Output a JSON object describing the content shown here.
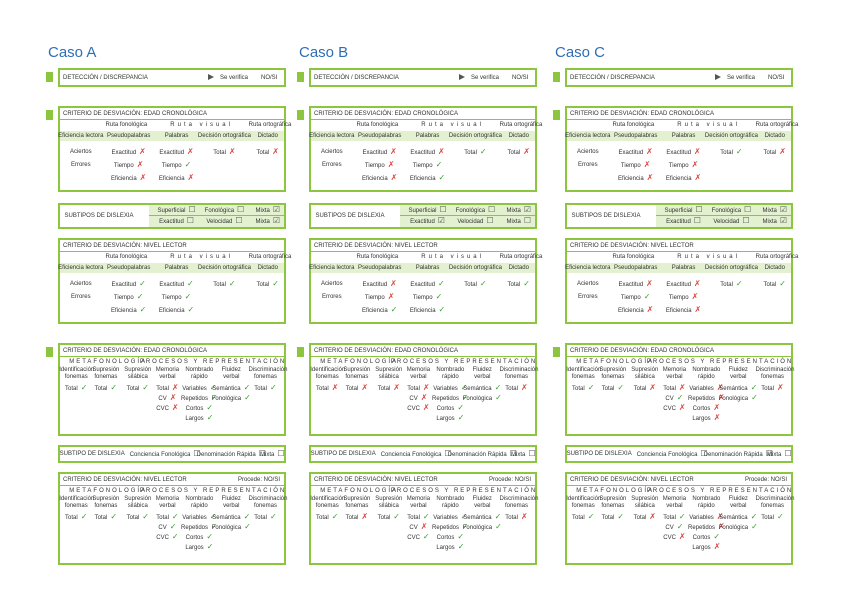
{
  "labels": {
    "detection": "DETECCIÓN / DISCREPANCIA",
    "verify": "Se verifica",
    "noSi": "NO/SI",
    "edad": "CRITERIO DE DESVIACIÓN: EDAD CRONOLÓGICA",
    "nivel": "CRITERIO DE DESVIACIÓN: NIVEL LECTOR",
    "readingGroups": [
      "Ruta fonológica",
      "Ruta visual",
      "Ruta ortográfica"
    ],
    "readingColumns": [
      "Eficiencia lectora",
      "Pseudopalabras",
      "Palabras",
      "Decisión ortográfica",
      "Dictado"
    ],
    "subtypesTitle": "SUBTIPOS DE DISLEXIA",
    "metaGroups": [
      "METAFONOLOGÍA",
      "PROCESOS Y REPRESENTACIÓN"
    ],
    "metaColumns": [
      "Identificación fonemas",
      "Supresión fonemas",
      "Supresión silábica",
      "Memoria verbal",
      "Nombrado rápido",
      "Fluidez verbal",
      "Discriminación fonemas"
    ],
    "subtypeTitle": "SUBTIPO DE DISLEXIA",
    "procede": "Procede: NO/SI"
  },
  "markColors": {
    "✓": "#3d9b35",
    "✗": "#d8433b"
  },
  "cases": [
    {
      "title": "Caso A",
      "reading1": [
        {
          "label": "Aciertos",
          "cells": [
            [
              "Exactitud",
              "✗"
            ],
            [
              "Exactitud",
              "✗"
            ],
            [
              "Total",
              "✗"
            ],
            [
              "Total",
              "✗"
            ]
          ]
        },
        {
          "label": "Errores",
          "cells": [
            [
              "Tiempo",
              "✗"
            ],
            [
              "Tiempo",
              "✓"
            ]
          ]
        },
        {
          "cells": [
            [
              "Eficiencia",
              "✗"
            ],
            [
              "Eficiencia",
              "✗"
            ]
          ]
        }
      ],
      "subtypes": [
        [
          [
            "Superficial",
            "☐"
          ],
          [
            "Fonológica",
            "☐"
          ],
          [
            "Mixta",
            "☑"
          ]
        ],
        [
          [
            "Exactitud",
            "☐"
          ],
          [
            "Velocidad",
            "☐"
          ],
          [
            "Mixta",
            "☑"
          ]
        ]
      ],
      "reading2": [
        {
          "label": "Aciertos",
          "cells": [
            [
              "Exactitud",
              "✓"
            ],
            [
              "Exactitud",
              "✓"
            ],
            [
              "Total",
              "✓"
            ],
            [
              "Total",
              "✓"
            ]
          ]
        },
        {
          "label": "Errores",
          "cells": [
            [
              "Tiempo",
              "✓"
            ],
            [
              "Tiempo",
              "✓"
            ]
          ]
        },
        {
          "cells": [
            [
              "Eficiencia",
              "✓"
            ],
            [
              "Eficiencia",
              "✓"
            ]
          ]
        }
      ],
      "meta1": [
        [
          [
            "Total",
            "✓"
          ],
          [
            "Total",
            "✓"
          ],
          [
            "Total",
            "✓"
          ],
          [
            "Total",
            "✗"
          ],
          [
            "Variables",
            "✓"
          ],
          [
            "Semántica",
            "✓"
          ],
          [
            "Total",
            "✓"
          ]
        ],
        [
          [
            "CV",
            "✗"
          ],
          [
            "Repetidos",
            "✓"
          ],
          [
            "Fonológica",
            "✓"
          ]
        ],
        [
          [
            "CVC",
            "✗"
          ],
          [
            "Cortos",
            "✓"
          ]
        ],
        [
          [
            "Largos",
            "✓"
          ]
        ]
      ],
      "subtype": [
        [
          "Conciencia Fonológica",
          "☐"
        ],
        [
          "Denominación Rápida",
          "☐"
        ],
        [
          "Mixta",
          "☐"
        ]
      ],
      "meta2": [
        [
          [
            "Total",
            "✓"
          ],
          [
            "Total",
            "✓"
          ],
          [
            "Total",
            "✓"
          ],
          [
            "Total",
            "✓"
          ],
          [
            "Variables",
            "✓"
          ],
          [
            "Semántica",
            "✓"
          ],
          [
            "Total",
            "✓"
          ]
        ],
        [
          [
            "CV",
            "✓"
          ],
          [
            "Repetidos",
            "✓"
          ],
          [
            "Fonológica",
            "✓"
          ]
        ],
        [
          [
            "CVC",
            "✓"
          ],
          [
            "Cortos",
            "✓"
          ]
        ],
        [
          [
            "Largos",
            "✓"
          ]
        ]
      ]
    },
    {
      "title": "Caso B",
      "reading1": [
        {
          "label": "Aciertos",
          "cells": [
            [
              "Exactitud",
              "✗"
            ],
            [
              "Exactitud",
              "✗"
            ],
            [
              "Total",
              "✓"
            ],
            [
              "Total",
              "✗"
            ]
          ]
        },
        {
          "label": "Errores",
          "cells": [
            [
              "Tiempo",
              "✗"
            ],
            [
              "Tiempo",
              "✓"
            ]
          ]
        },
        {
          "cells": [
            [
              "Eficiencia",
              "✗"
            ],
            [
              "Eficiencia",
              "✓"
            ]
          ]
        }
      ],
      "subtypes": [
        [
          [
            "Superficial",
            "☐"
          ],
          [
            "Fonológica",
            "☐"
          ],
          [
            "Mixta",
            "☑"
          ]
        ],
        [
          [
            "Exactitud",
            "☑"
          ],
          [
            "Velocidad",
            "☐"
          ],
          [
            "Mixta",
            "☐"
          ]
        ]
      ],
      "reading2": [
        {
          "label": "Aciertos",
          "cells": [
            [
              "Exactitud",
              "✗"
            ],
            [
              "Exactitud",
              "✓"
            ],
            [
              "Total",
              "✓"
            ],
            [
              "Total",
              "✓"
            ]
          ]
        },
        {
          "label": "Errores",
          "cells": [
            [
              "Tiempo",
              "✗"
            ],
            [
              "Tiempo",
              "✓"
            ]
          ]
        },
        {
          "cells": [
            [
              "Eficiencia",
              "✓"
            ],
            [
              "Eficiencia",
              "✓"
            ]
          ]
        }
      ],
      "meta1": [
        [
          [
            "Total",
            "✗"
          ],
          [
            "Total",
            "✗"
          ],
          [
            "Total",
            "✗"
          ],
          [
            "Total",
            "✗"
          ],
          [
            "Variables",
            "✓"
          ],
          [
            "Semántica",
            "✓"
          ],
          [
            "Total",
            "✗"
          ]
        ],
        [
          [
            "CV",
            "✗"
          ],
          [
            "Repetidos",
            "✓"
          ],
          [
            "Fonológica",
            "✓"
          ]
        ],
        [
          [
            "CVC",
            "✗"
          ],
          [
            "Cortos",
            "✓"
          ]
        ],
        [
          [
            "Largos",
            "✓"
          ]
        ]
      ],
      "subtype": [
        [
          "Conciencia Fonológica",
          "☐"
        ],
        [
          "Denominación Rápida",
          "☐"
        ],
        [
          "Mixta",
          "☐"
        ]
      ],
      "meta2": [
        [
          [
            "Total",
            "✓"
          ],
          [
            "Total",
            "✗"
          ],
          [
            "Total",
            "✓"
          ],
          [
            "Total",
            "✓"
          ],
          [
            "Variables",
            "✓"
          ],
          [
            "Semántica",
            "✓"
          ],
          [
            "Total",
            "✗"
          ]
        ],
        [
          [
            "CV",
            "✗"
          ],
          [
            "Repetidos",
            "✓"
          ],
          [
            "Fonológica",
            "✓"
          ]
        ],
        [
          [
            "CVC",
            "✓"
          ],
          [
            "Cortos",
            "✓"
          ]
        ],
        [
          [
            "Largos",
            "✓"
          ]
        ]
      ]
    },
    {
      "title": "Caso C",
      "reading1": [
        {
          "label": "Aciertos",
          "cells": [
            [
              "Exactitud",
              "✗"
            ],
            [
              "Exactitud",
              "✗"
            ],
            [
              "Total",
              "✓"
            ],
            [
              "Total",
              "✗"
            ]
          ]
        },
        {
          "label": "Errores",
          "cells": [
            [
              "Tiempo",
              "✗"
            ],
            [
              "Tiempo",
              "✗"
            ]
          ]
        },
        {
          "cells": [
            [
              "Eficiencia",
              "✗"
            ],
            [
              "Eficiencia",
              "✗"
            ]
          ]
        }
      ],
      "subtypes": [
        [
          [
            "Superficial",
            "☐"
          ],
          [
            "Fonológica",
            "☐"
          ],
          [
            "Mixta",
            "☑"
          ]
        ],
        [
          [
            "Exactitud",
            "☐"
          ],
          [
            "Velocidad",
            "☐"
          ],
          [
            "Mixta",
            "☑"
          ]
        ]
      ],
      "reading2": [
        {
          "label": "Aciertos",
          "cells": [
            [
              "Exactitud",
              "✗"
            ],
            [
              "Exactitud",
              "✗"
            ],
            [
              "Total",
              "✓"
            ],
            [
              "Total",
              "✓"
            ]
          ]
        },
        {
          "label": "Errores",
          "cells": [
            [
              "Tiempo",
              "✓"
            ],
            [
              "Tiempo",
              "✗"
            ]
          ]
        },
        {
          "cells": [
            [
              "Eficiencia",
              "✗"
            ],
            [
              "Eficiencia",
              "✗"
            ]
          ]
        }
      ],
      "meta1": [
        [
          [
            "Total",
            "✓"
          ],
          [
            "Total",
            "✓"
          ],
          [
            "Total",
            "✗"
          ],
          [
            "Total",
            "✗"
          ],
          [
            "Variables",
            "✗"
          ],
          [
            "Semántica",
            "✓"
          ],
          [
            "Total",
            "✗"
          ]
        ],
        [
          [
            "CV",
            "✓"
          ],
          [
            "Repetidos",
            "✗"
          ],
          [
            "Fonológica",
            "✓"
          ]
        ],
        [
          [
            "CVC",
            "✗"
          ],
          [
            "Cortos",
            "✗"
          ]
        ],
        [
          [
            "Largos",
            "✗"
          ]
        ]
      ],
      "subtype": [
        [
          "Conciencia Fonológica",
          "☐"
        ],
        [
          "Denominación Rápida",
          "☑"
        ],
        [
          "Mixta",
          "☐"
        ]
      ],
      "meta2": [
        [
          [
            "Total",
            "✓"
          ],
          [
            "Total",
            "✓"
          ],
          [
            "Total",
            "✗"
          ],
          [
            "Total",
            "✓"
          ],
          [
            "Variables",
            "✗"
          ],
          [
            "Semántica",
            "✓"
          ],
          [
            "Total",
            "✓"
          ]
        ],
        [
          [
            "CV",
            "✓"
          ],
          [
            "Repetidos",
            "✗"
          ],
          [
            "Fonológica",
            "✓"
          ]
        ],
        [
          [
            "CVC",
            "✗"
          ],
          [
            "Cortos",
            "✓"
          ]
        ],
        [
          [
            "Largos",
            "✗"
          ]
        ]
      ]
    }
  ]
}
